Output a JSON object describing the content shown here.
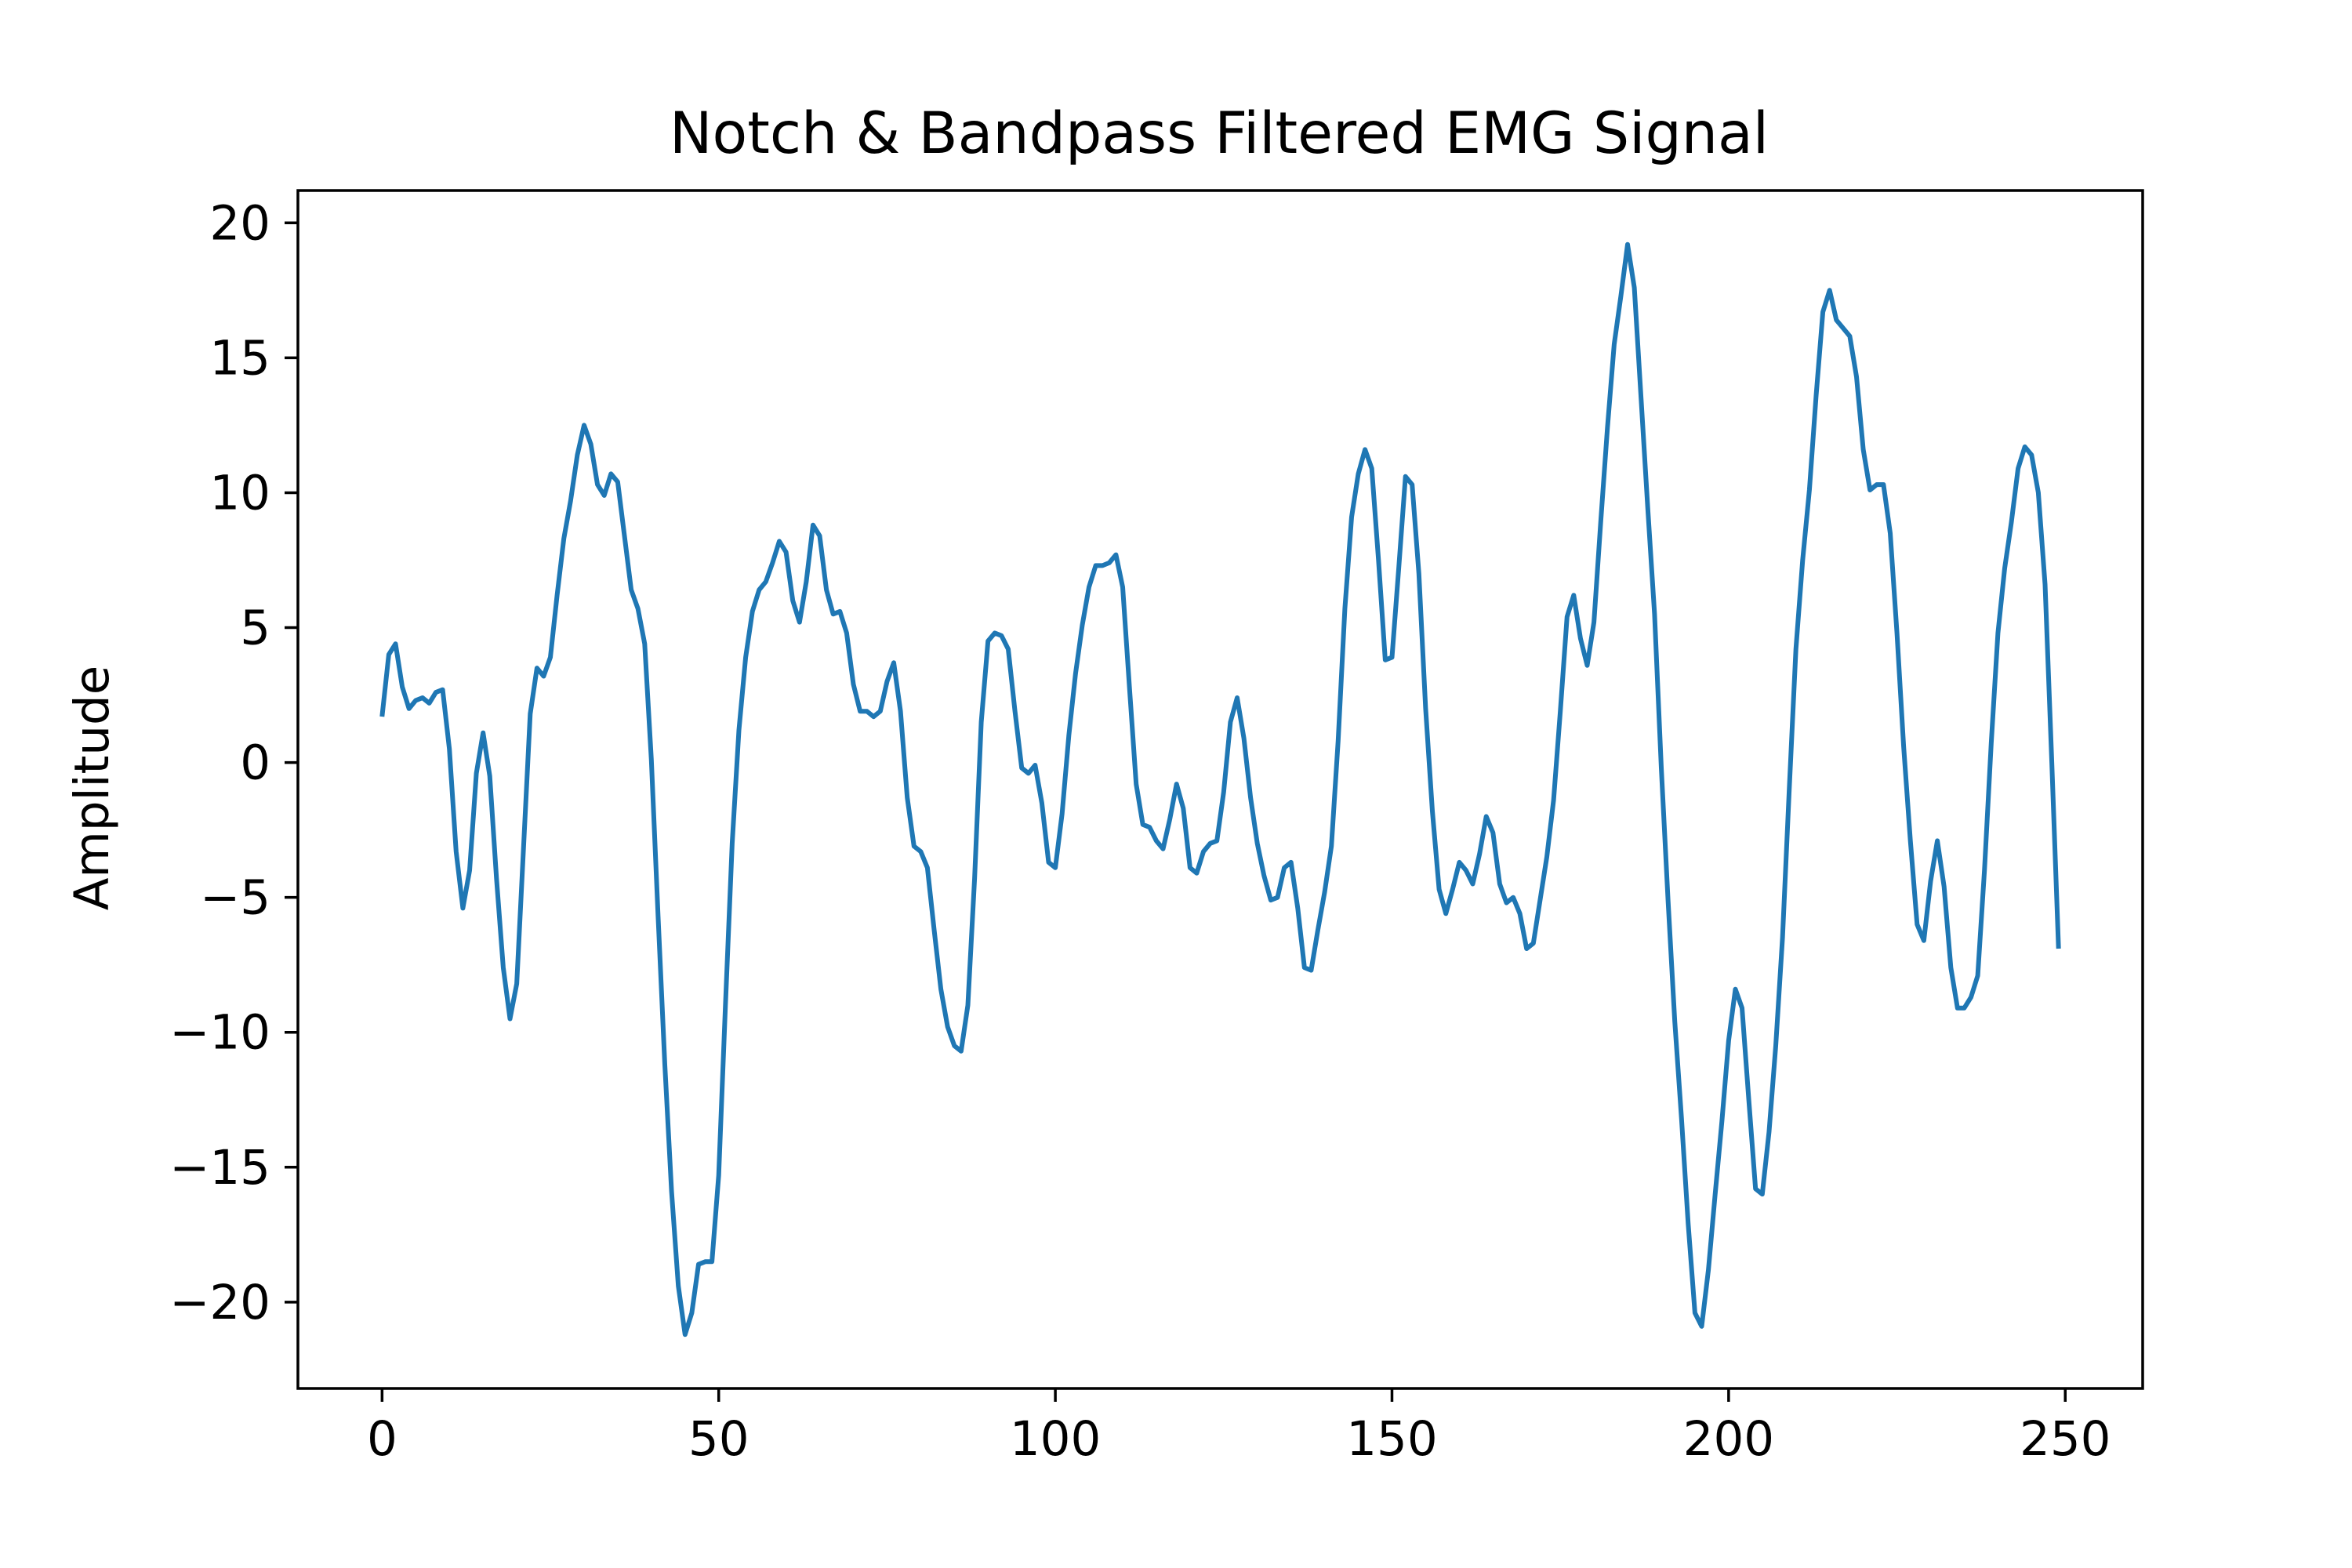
{
  "chart_data": {
    "type": "line",
    "title": "Notch & Bandpass Filtered EMG Signal",
    "xlabel": "",
    "ylabel": "Amplitude",
    "xlim": [
      -12.5,
      261.5
    ],
    "ylim": [
      -23.2,
      21.2
    ],
    "xticks": [
      0,
      50,
      100,
      150,
      200,
      250
    ],
    "yticks": [
      20,
      15,
      10,
      5,
      0,
      -5,
      -10,
      -15,
      -20
    ],
    "grid": false,
    "legend": "none",
    "colors": {
      "line": "#1f77b4",
      "axes": "#000000",
      "background": "#ffffff"
    },
    "series": [
      {
        "values": [
          1.7,
          4.0,
          4.4,
          2.8,
          2.0,
          2.3,
          2.4,
          2.2,
          2.6,
          2.7,
          0.5,
          -3.3,
          -5.4,
          -4.0,
          -0.4,
          1.1,
          -0.5,
          -4.3,
          -7.6,
          -9.5,
          -8.2,
          -3.2,
          1.8,
          3.5,
          3.2,
          3.9,
          6.2,
          8.3,
          9.7,
          11.4,
          12.5,
          11.8,
          10.3,
          9.9,
          10.7,
          10.4,
          8.4,
          6.4,
          5.7,
          4.4,
          0.1,
          -5.7,
          -11.2,
          -15.9,
          -19.4,
          -21.2,
          -20.4,
          -18.6,
          -18.5,
          -18.5,
          -15.3,
          -9.0,
          -3.0,
          1.2,
          3.9,
          5.6,
          6.4,
          6.7,
          7.4,
          8.2,
          7.8,
          6.0,
          5.2,
          6.7,
          8.8,
          8.4,
          6.4,
          5.5,
          5.6,
          4.8,
          2.9,
          1.9,
          1.9,
          1.7,
          1.9,
          3.0,
          3.7,
          1.9,
          -1.3,
          -3.1,
          -3.3,
          -3.9,
          -6.2,
          -8.4,
          -9.8,
          -10.5,
          -10.7,
          -9.0,
          -4.3,
          1.5,
          4.5,
          4.8,
          4.7,
          4.2,
          1.9,
          -0.2,
          -0.4,
          -0.1,
          -1.5,
          -3.7,
          -3.9,
          -1.9,
          1.0,
          3.3,
          5.1,
          6.5,
          7.3,
          7.3,
          7.4,
          7.7,
          6.5,
          2.8,
          -0.8,
          -2.3,
          -2.4,
          -2.9,
          -3.2,
          -2.1,
          -0.8,
          -1.7,
          -3.9,
          -4.1,
          -3.3,
          -3.0,
          -2.9,
          -1.1,
          1.5,
          2.4,
          0.9,
          -1.3,
          -3.0,
          -4.2,
          -5.1,
          -5.0,
          -3.9,
          -3.7,
          -5.4,
          -7.6,
          -7.7,
          -6.2,
          -4.8,
          -3.1,
          0.8,
          5.7,
          9.1,
          10.7,
          11.6,
          10.9,
          7.5,
          3.8,
          3.9,
          7.2,
          10.6,
          10.3,
          7.0,
          2.0,
          -1.8,
          -4.7,
          -5.6,
          -4.7,
          -3.7,
          -4.0,
          -4.5,
          -3.4,
          -2.0,
          -2.6,
          -4.5,
          -5.2,
          -5.0,
          -5.6,
          -6.9,
          -6.7,
          -5.1,
          -3.5,
          -1.4,
          1.9,
          5.4,
          6.2,
          4.6,
          3.6,
          5.2,
          8.9,
          12.4,
          15.5,
          17.3,
          19.2,
          17.6,
          13.5,
          9.4,
          5.5,
          -0.2,
          -5.1,
          -9.6,
          -13.2,
          -17.1,
          -20.4,
          -20.9,
          -18.8,
          -16.0,
          -13.3,
          -10.3,
          -8.4,
          -9.1,
          -12.5,
          -15.8,
          -16.0,
          -13.7,
          -10.5,
          -6.5,
          -1.0,
          4.2,
          7.5,
          10.1,
          13.6,
          16.7,
          17.5,
          16.4,
          16.1,
          15.8,
          14.3,
          11.6,
          10.1,
          10.3,
          10.3,
          8.5,
          4.8,
          0.6,
          -2.9,
          -6.0,
          -6.6,
          -4.4,
          -2.9,
          -4.6,
          -7.6,
          -9.1,
          -9.1,
          -8.7,
          -7.9,
          -4.0,
          0.7,
          4.8,
          7.2,
          8.9,
          10.9,
          11.7,
          11.4,
          10.0,
          6.6,
          0.0,
          -6.9
        ]
      }
    ]
  }
}
